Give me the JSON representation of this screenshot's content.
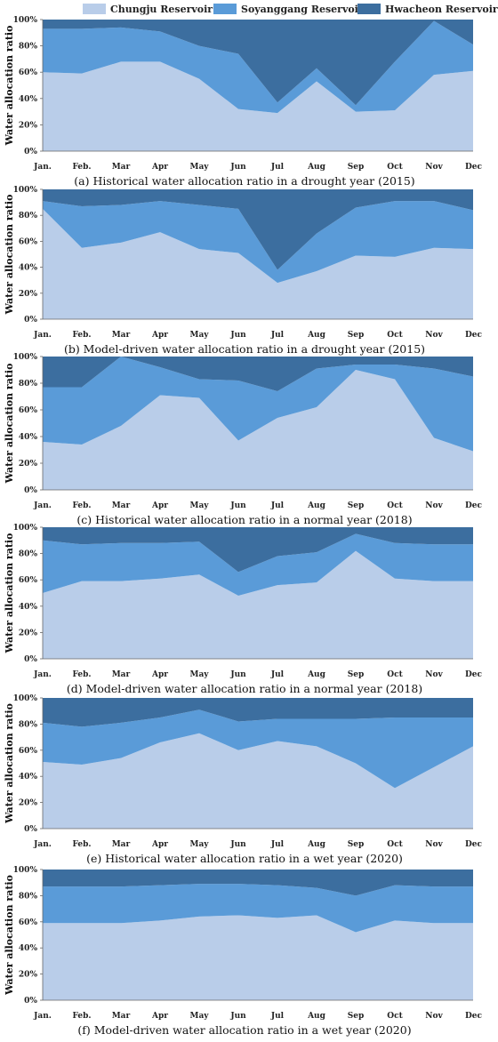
{
  "legend": {
    "items": [
      {
        "label": "Chungju Reservoir",
        "color": "#b9cde9"
      },
      {
        "label": "Soyanggang Reservoir",
        "color": "#5a9bd8"
      },
      {
        "label": "Hwacheon Reservoir",
        "color": "#3c6e9f"
      }
    ]
  },
  "chart_data": [
    {
      "type": "area",
      "stacked": true,
      "caption": "(a) Historical water allocation ratio in a drought year (2015)",
      "ylabel": "Water allocation ratio",
      "categories": [
        "Jan.",
        "Feb.",
        "Mar",
        "Apr",
        "May",
        "Jun",
        "Jul",
        "Aug",
        "Sep",
        "Oct",
        "Nov",
        "Dec"
      ],
      "yticks": [
        "0%",
        "20%",
        "40%",
        "60%",
        "80%",
        "100%"
      ],
      "ylim": [
        0,
        100
      ],
      "series": [
        {
          "name": "Chungju Reservoir",
          "values": [
            60,
            59,
            68,
            68,
            55,
            32,
            29,
            53,
            30,
            31,
            58,
            61
          ]
        },
        {
          "name": "Soyanggang Reservoir",
          "values": [
            33,
            34,
            26,
            23,
            25,
            42,
            8,
            10,
            5,
            37,
            41,
            20
          ]
        },
        {
          "name": "Hwacheon Reservoir",
          "values": [
            7,
            7,
            6,
            9,
            20,
            26,
            63,
            37,
            65,
            32,
            1,
            19
          ]
        }
      ]
    },
    {
      "type": "area",
      "stacked": true,
      "caption": "(b) Model-driven water allocation ratio in a drought year (2015)",
      "ylabel": "Water allocation ratio",
      "categories": [
        "Jan.",
        "Feb.",
        "Mar",
        "Apr",
        "May",
        "Jun",
        "Jul",
        "Aug",
        "Sep",
        "Oct",
        "Nov",
        "Dec"
      ],
      "yticks": [
        "0%",
        "20%",
        "40%",
        "60%",
        "80%",
        "100%"
      ],
      "ylim": [
        0,
        100
      ],
      "series": [
        {
          "name": "Chungju Reservoir",
          "values": [
            85,
            55,
            59,
            67,
            54,
            51,
            28,
            37,
            49,
            48,
            55,
            54
          ]
        },
        {
          "name": "Soyanggang Reservoir",
          "values": [
            6,
            32,
            29,
            24,
            34,
            34,
            10,
            29,
            37,
            43,
            36,
            30
          ]
        },
        {
          "name": "Hwacheon Reservoir",
          "values": [
            9,
            13,
            12,
            9,
            12,
            15,
            62,
            34,
            14,
            9,
            9,
            16
          ]
        }
      ]
    },
    {
      "type": "area",
      "stacked": true,
      "caption": "(c) Historical water allocation ratio in a normal year (2018)",
      "ylabel": "Water allocation ratio",
      "categories": [
        "Jan.",
        "Feb.",
        "Mar",
        "Apr",
        "May",
        "Jun",
        "Jul",
        "Aug",
        "Sep",
        "Oct",
        "Nov",
        "Dec"
      ],
      "yticks": [
        "0%",
        "20%",
        "40%",
        "60%",
        "80%",
        "100%"
      ],
      "ylim": [
        0,
        100
      ],
      "series": [
        {
          "name": "Chungju Reservoir",
          "values": [
            36,
            34,
            48,
            71,
            69,
            37,
            54,
            62,
            90,
            83,
            39,
            29
          ]
        },
        {
          "name": "Soyanggang Reservoir",
          "values": [
            41,
            43,
            52,
            21,
            14,
            45,
            20,
            29,
            4,
            11,
            52,
            56
          ]
        },
        {
          "name": "Hwacheon Reservoir",
          "values": [
            23,
            23,
            0,
            8,
            17,
            18,
            26,
            9,
            6,
            6,
            9,
            15
          ]
        }
      ]
    },
    {
      "type": "area",
      "stacked": true,
      "caption": "(d) Model-driven water allocation ratio in a normal year (2018)",
      "ylabel": "Water allocation ratio",
      "categories": [
        "Jan.",
        "Feb.",
        "Mar",
        "Apr",
        "May",
        "Jun",
        "Jul",
        "Aug",
        "Sep",
        "Oct",
        "Nov",
        "Dec"
      ],
      "yticks": [
        "0%",
        "20%",
        "40%",
        "60%",
        "80%",
        "100%"
      ],
      "ylim": [
        0,
        100
      ],
      "series": [
        {
          "name": "Chungju Reservoir",
          "values": [
            50,
            59,
            59,
            61,
            64,
            48,
            56,
            58,
            82,
            61,
            59,
            59
          ]
        },
        {
          "name": "Soyanggang Reservoir",
          "values": [
            40,
            28,
            29,
            27,
            25,
            18,
            22,
            23,
            13,
            27,
            28,
            28
          ]
        },
        {
          "name": "Hwacheon Reservoir",
          "values": [
            10,
            13,
            12,
            12,
            11,
            34,
            22,
            19,
            5,
            12,
            13,
            13
          ]
        }
      ]
    },
    {
      "type": "area",
      "stacked": true,
      "caption": "(e) Historical water allocation ratio in a wet year (2020)",
      "ylabel": "Water allocation ratio",
      "categories": [
        "Jan.",
        "Feb.",
        "Mar",
        "Apr",
        "May",
        "Jun",
        "Jul",
        "Aug",
        "Sep",
        "Oct",
        "Nov",
        "Dec"
      ],
      "yticks": [
        "0%",
        "20%",
        "40%",
        "60%",
        "80%",
        "100%"
      ],
      "ylim": [
        0,
        100
      ],
      "series": [
        {
          "name": "Chungju Reservoir",
          "values": [
            51,
            49,
            54,
            66,
            73,
            60,
            67,
            63,
            50,
            31,
            47,
            63
          ]
        },
        {
          "name": "Soyanggang Reservoir",
          "values": [
            30,
            29,
            27,
            19,
            18,
            22,
            17,
            21,
            34,
            54,
            38,
            22
          ]
        },
        {
          "name": "Hwacheon Reservoir",
          "values": [
            19,
            22,
            19,
            15,
            9,
            18,
            16,
            16,
            16,
            15,
            15,
            15
          ]
        }
      ]
    },
    {
      "type": "area",
      "stacked": true,
      "caption": "(f) Model-driven water allocation ratio in a wet year (2020)",
      "ylabel": "Water allocation ratio",
      "categories": [
        "Jan.",
        "Feb.",
        "Mar",
        "Apr",
        "May",
        "Jun",
        "Jul",
        "Aug",
        "Sep",
        "Oct",
        "Nov",
        "Dec"
      ],
      "yticks": [
        "0%",
        "20%",
        "40%",
        "60%",
        "80%",
        "100%"
      ],
      "ylim": [
        0,
        100
      ],
      "series": [
        {
          "name": "Chungju Reservoir",
          "values": [
            59,
            59,
            59,
            61,
            64,
            65,
            63,
            65,
            52,
            61,
            59,
            59
          ]
        },
        {
          "name": "Soyanggang Reservoir",
          "values": [
            28,
            28,
            28,
            27,
            25,
            24,
            25,
            21,
            28,
            27,
            28,
            28
          ]
        },
        {
          "name": "Hwacheon Reservoir",
          "values": [
            13,
            13,
            13,
            12,
            11,
            11,
            12,
            14,
            20,
            12,
            13,
            13
          ]
        }
      ]
    }
  ]
}
